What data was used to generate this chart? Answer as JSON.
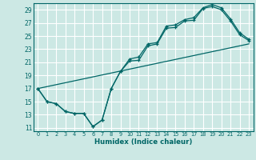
{
  "title": "",
  "xlabel": "Humidex (Indice chaleur)",
  "bg_color": "#cce8e4",
  "grid_color": "#ffffff",
  "line_color": "#006666",
  "xlim": [
    -0.5,
    23.5
  ],
  "ylim": [
    10.5,
    30.0
  ],
  "xticks": [
    0,
    1,
    2,
    3,
    4,
    5,
    6,
    7,
    8,
    9,
    10,
    11,
    12,
    13,
    14,
    15,
    16,
    17,
    18,
    19,
    20,
    21,
    22,
    23
  ],
  "yticks": [
    11,
    13,
    15,
    17,
    19,
    21,
    23,
    25,
    27,
    29
  ],
  "series1_x": [
    0,
    1,
    2,
    3,
    4,
    5,
    6,
    7,
    8,
    9,
    10,
    11,
    12,
    13,
    14,
    15,
    16,
    17,
    18,
    19,
    20,
    21,
    22,
    23
  ],
  "series1_y": [
    17,
    15,
    14.7,
    13.5,
    13.2,
    13.2,
    11.2,
    12.2,
    17.0,
    19.6,
    21.2,
    21.3,
    23.5,
    23.8,
    26.2,
    26.3,
    27.3,
    27.4,
    29.2,
    29.5,
    29.0,
    27.3,
    25.2,
    24.3
  ],
  "series2_x": [
    0,
    1,
    2,
    3,
    4,
    5,
    6,
    7,
    8,
    9,
    10,
    11,
    12,
    13,
    14,
    15,
    16,
    17,
    18,
    19,
    20,
    21,
    22,
    23
  ],
  "series2_y": [
    17,
    15,
    14.7,
    13.5,
    13.2,
    13.2,
    11.2,
    12.2,
    17.0,
    19.6,
    21.5,
    21.8,
    23.8,
    24.0,
    26.5,
    26.7,
    27.5,
    27.8,
    29.3,
    29.8,
    29.3,
    27.6,
    25.5,
    24.5
  ],
  "trend_x": [
    0,
    23
  ],
  "trend_y": [
    17.0,
    23.8
  ]
}
